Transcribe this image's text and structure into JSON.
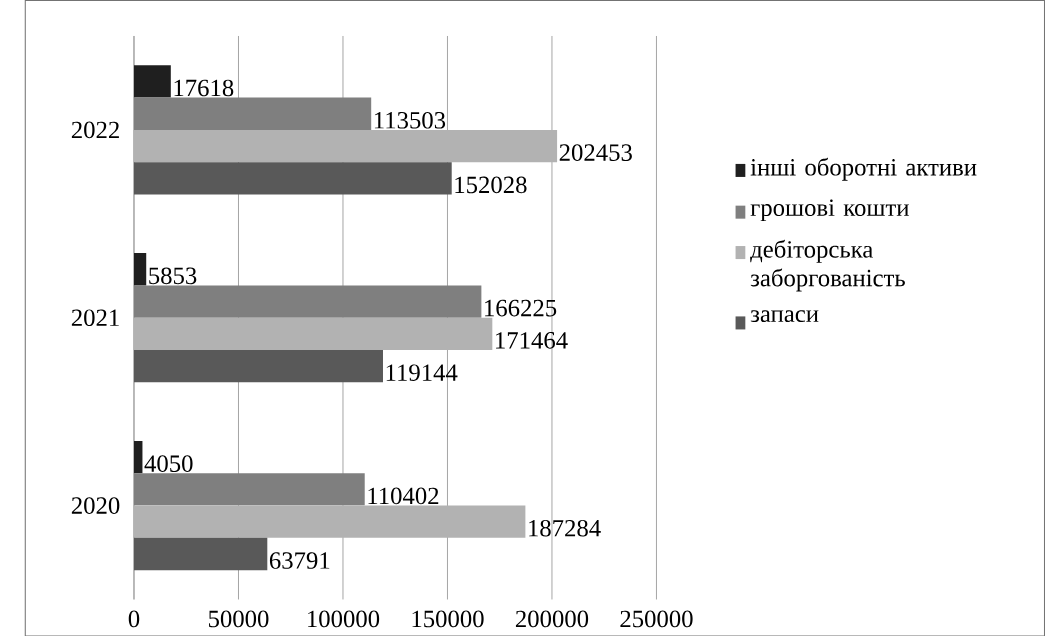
{
  "chart_data": {
    "type": "bar",
    "orientation": "horizontal",
    "categories": [
      "2022",
      "2021",
      "2020"
    ],
    "series": [
      {
        "name": "інші оборотні активи",
        "color": "#1f1f1f",
        "values": [
          17618,
          5853,
          4050
        ]
      },
      {
        "name": "грошові кошти",
        "color": "#7f7f7f",
        "values": [
          113503,
          166225,
          110402
        ]
      },
      {
        "name": "дебіторська заборгованість",
        "color": "#b2b2b2",
        "values": [
          202453,
          171464,
          187284
        ]
      },
      {
        "name": "запаси",
        "color": "#595959",
        "values": [
          152028,
          119144,
          63791
        ]
      }
    ],
    "xlim": [
      0,
      250000
    ],
    "xticks": [
      0,
      50000,
      100000,
      150000,
      200000,
      250000
    ],
    "grid": "x",
    "legend": "right",
    "data_labels": true
  }
}
